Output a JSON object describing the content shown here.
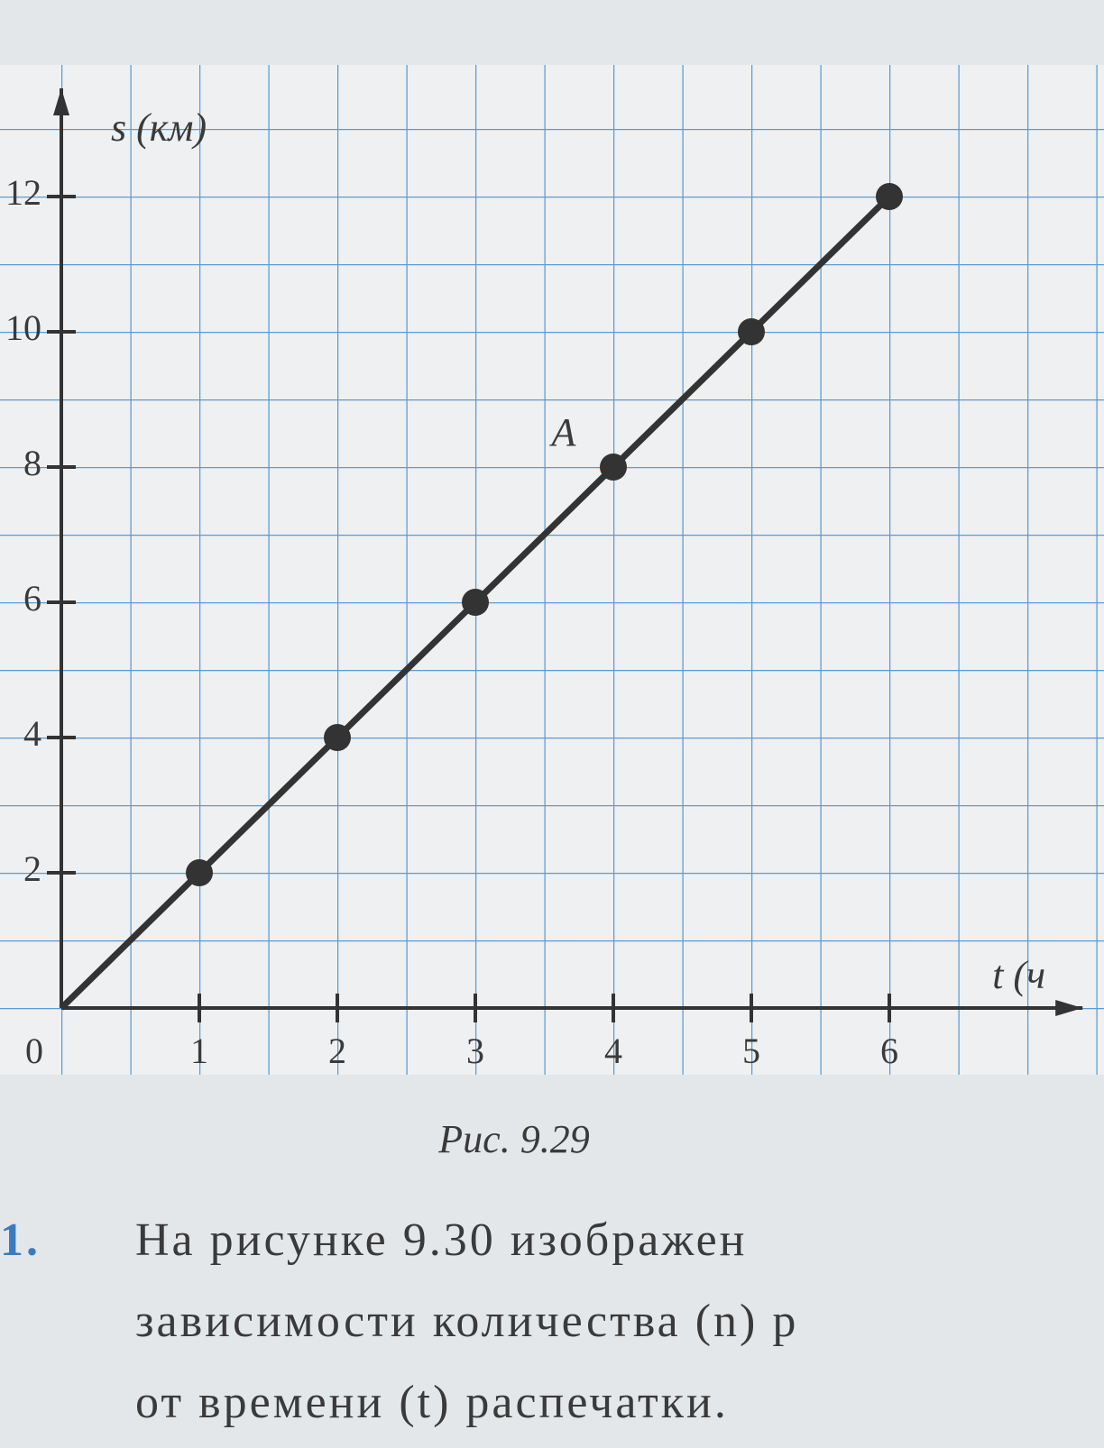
{
  "chart_data": {
    "type": "line",
    "ylabel": "s (км)",
    "xlabel": "t (ч",
    "x": [
      0,
      1,
      2,
      3,
      4,
      5,
      6
    ],
    "series": [
      {
        "name": "s",
        "color": "#333333",
        "values": [
          0,
          2,
          4,
          6,
          8,
          10,
          12
        ]
      }
    ],
    "xlim": [
      0,
      7.4
    ],
    "ylim": [
      0,
      13.6
    ],
    "xticks": [
      0,
      1,
      2,
      3,
      4,
      5,
      6
    ],
    "yticks": [
      2,
      4,
      6,
      8,
      10,
      12
    ],
    "grid": true,
    "grid_color": "#4a90d0",
    "annotation": "A",
    "caption": "Рис. 9.29"
  },
  "text": {
    "number": "1.",
    "lines": [
      "На рисунке 9.30 изображен",
      "зависимости количества (n) р",
      "от времени (t) распечатки."
    ]
  }
}
